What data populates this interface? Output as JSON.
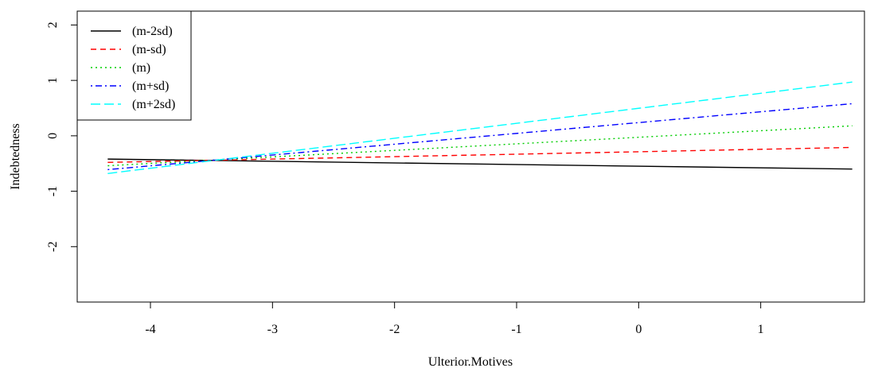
{
  "chart_data": {
    "type": "line",
    "xlabel": "Ulterior.Motives",
    "ylabel": "Indebtedness",
    "xlim": [
      -4.6,
      1.85
    ],
    "ylim": [
      -3.0,
      2.25
    ],
    "x_ticks": [
      -4,
      -3,
      -2,
      -1,
      0,
      1
    ],
    "x_tick_labels": [
      "-4",
      "-3",
      "-2",
      "-1",
      "0",
      "1"
    ],
    "y_ticks": [
      -2,
      -1,
      0,
      1,
      2
    ],
    "y_tick_labels": [
      "-2",
      "-1",
      "0",
      "1",
      "2"
    ],
    "grid": false,
    "legend_position": "top-left",
    "series": [
      {
        "name": "(m-2sd)",
        "color": "#000000",
        "dash": "solid",
        "x": [
          -4.35,
          1.75
        ],
        "y": [
          -0.42,
          -0.6
        ]
      },
      {
        "name": "(m-sd)",
        "color": "#ff0000",
        "dash": "dashed",
        "x": [
          -4.35,
          1.75
        ],
        "y": [
          -0.48,
          -0.21
        ]
      },
      {
        "name": "(m)",
        "color": "#00cd00",
        "dash": "dotted",
        "x": [
          -4.35,
          1.75
        ],
        "y": [
          -0.54,
          0.18
        ]
      },
      {
        "name": "(m+sd)",
        "color": "#0000ff",
        "dash": "dotdash",
        "x": [
          -4.35,
          1.75
        ],
        "y": [
          -0.61,
          0.58
        ]
      },
      {
        "name": "(m+2sd)",
        "color": "#00ffff",
        "dash": "longdash",
        "x": [
          -4.35,
          1.75
        ],
        "y": [
          -0.68,
          0.97
        ]
      }
    ]
  }
}
